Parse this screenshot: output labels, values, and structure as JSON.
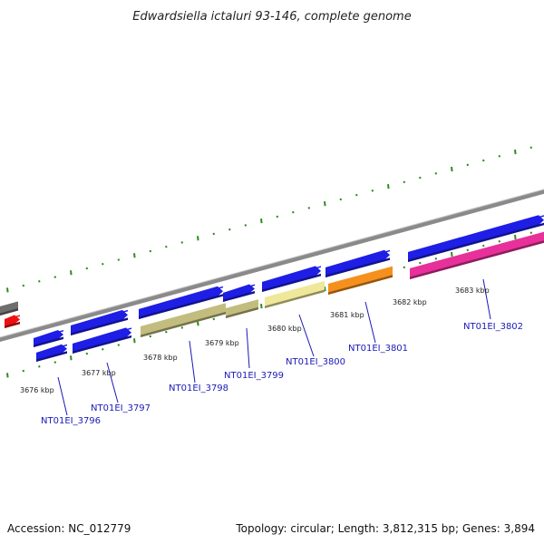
{
  "title": "Edwardsiella ictaluri 93-146, complete genome",
  "accession": "Accession: NC_012779",
  "topology": "Topology: circular; Length: 3,812,315 bp; Genes: 3,894",
  "colors": {
    "backbone": "#8a8a8a",
    "tick": "#2e8b1f",
    "label": "#1a1ab8",
    "blue_gene": "#1e1ee6",
    "olive_gene": "#c2bd7e",
    "pale_gene": "#efe79a",
    "orange_gene": "#f5901e",
    "magenta_gene": "#e8309a",
    "gray_gene": "#6e6e6e",
    "red_gene": "#ee1010"
  },
  "kbp_labels": [
    "3676 kbp",
    "3677 kbp",
    "3678 kbp",
    "3679 kbp",
    "3680 kbp",
    "3681 kbp",
    "3682 kbp",
    "3683 kbp"
  ],
  "gene_labels": [
    "NT01EI_3796",
    "NT01EI_3797",
    "NT01EI_3798",
    "NT01EI_3799",
    "NT01EI_3800",
    "NT01EI_3801",
    "NT01EI_3802"
  ]
}
